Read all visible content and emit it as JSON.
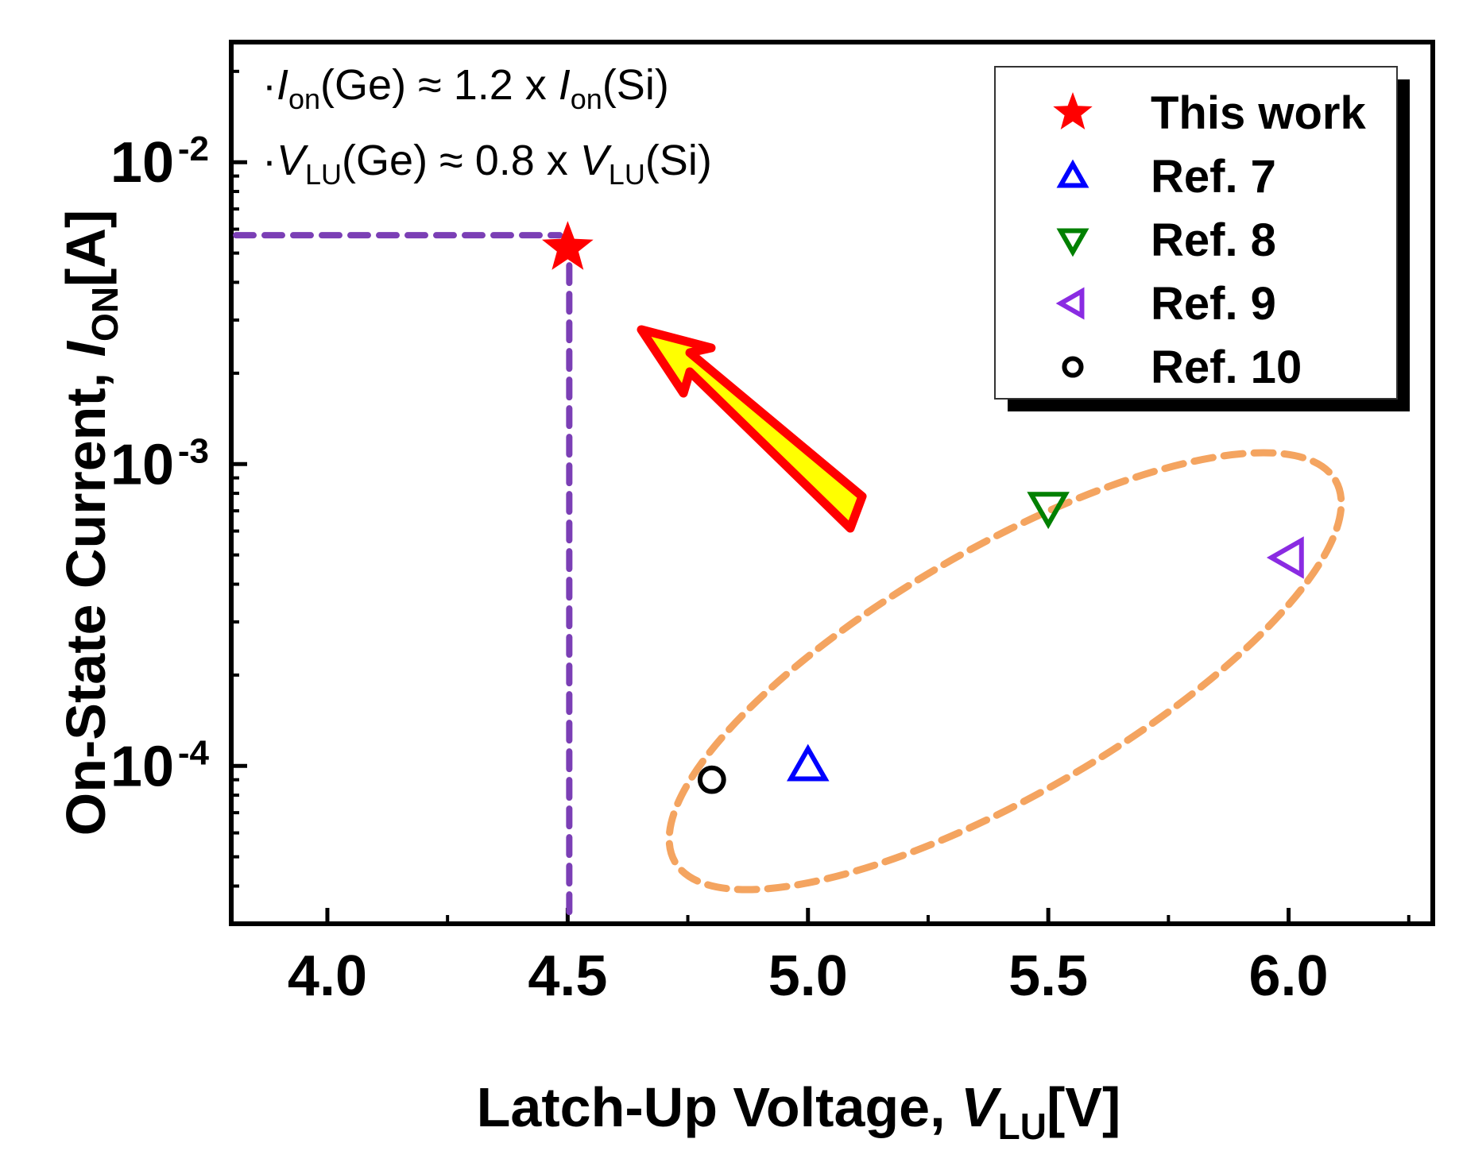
{
  "chart_data": {
    "type": "scatter",
    "xscale": "linear",
    "yscale": "log",
    "xlabel": "Latch-Up Voltage, ",
    "xlabel_var": "V",
    "xlabel_sub": "LU",
    "xlabel_unit": "[V]",
    "ylabel": "On-State Current, ",
    "ylabel_var": "I",
    "ylabel_sub": "ON",
    "ylabel_unit": "[A]",
    "xlim": [
      3.8,
      6.3
    ],
    "ylim": [
      3e-05,
      0.025
    ],
    "x_ticks": [
      {
        "value": 4.0,
        "label": "4.0"
      },
      {
        "value": 4.5,
        "label": "4.5"
      },
      {
        "value": 5.0,
        "label": "5.0"
      },
      {
        "value": 5.5,
        "label": "5.5"
      },
      {
        "value": 6.0,
        "label": "6.0"
      }
    ],
    "x_minor_ticks": [
      4.25,
      4.75,
      5.25,
      5.75,
      6.25
    ],
    "y_ticks": [
      {
        "value": 0.0001,
        "base": "10",
        "exp": "-4"
      },
      {
        "value": 0.001,
        "base": "10",
        "exp": "-3"
      },
      {
        "value": 0.01,
        "base": "10",
        "exp": "-2"
      }
    ],
    "series": [
      {
        "name": "This work",
        "marker": "star",
        "color": "#ff0000",
        "x": 4.5,
        "y": 0.0052
      },
      {
        "name": "Ref. 7",
        "marker": "triangle-up",
        "color": "#0000ff",
        "x": 5.0,
        "y": 0.0001
      },
      {
        "name": "Ref. 8",
        "marker": "triangle-down",
        "color": "#008000",
        "x": 5.5,
        "y": 0.00072
      },
      {
        "name": "Ref. 9",
        "marker": "triangle-left",
        "color": "#8a2be2",
        "x": 6.0,
        "y": 0.00049
      },
      {
        "name": "Ref. 10",
        "marker": "circle",
        "color": "#000000",
        "x": 4.8,
        "y": 9e-05
      }
    ],
    "guide_lines": {
      "x": 4.5,
      "y": 0.0052,
      "color": "#7b3fb5"
    },
    "highlight_ellipse": {
      "color": "#f4a460"
    },
    "arrow": {
      "fill": "#ffff00",
      "stroke": "#ff0000"
    },
    "annotations": [
      {
        "bullet": "·",
        "a_var": "I",
        "a_sub": "on",
        "a_mid": "(Ge) ≈ 1.2 x ",
        "b_var": "I",
        "b_sub": "on",
        "b_end": "(Si)"
      },
      {
        "bullet": "·",
        "a_var": "V",
        "a_sub": "LU",
        "a_mid": "(Ge) ≈ 0.8 x ",
        "b_var": "V",
        "b_sub": "LU",
        "b_end": "(Si)"
      }
    ],
    "legend_position": "top-right"
  }
}
